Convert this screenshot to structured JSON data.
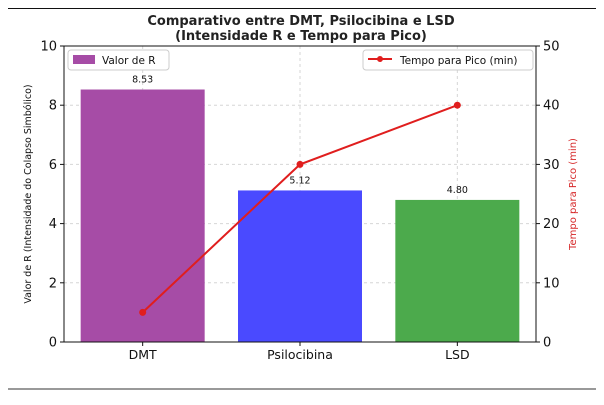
{
  "chart_data": {
    "type": "bar",
    "title_line1": "Comparativo entre DMT, Psilocibina e LSD",
    "title_line2": "(Intensidade R e Tempo para Pico)",
    "categories": [
      "DMT",
      "Psilocibina",
      "LSD"
    ],
    "bar_series": {
      "name": "Valor de R",
      "values": [
        8.53,
        5.12,
        4.8
      ],
      "value_labels": [
        "8.53",
        "5.12",
        "4.80"
      ],
      "colors": [
        "#a64ca6",
        "#4a4aff",
        "#4caa4c"
      ]
    },
    "line_series": {
      "name": "Tempo para Pico (min)",
      "values": [
        5,
        30,
        40
      ],
      "color": "#e01e1e"
    },
    "ylabel_left": "Valor de R (Intensidade do Colapso Simbólico)",
    "ylabel_right": "Tempo para Pico (min)",
    "ylim_left": [
      0,
      10
    ],
    "ylim_right": [
      0,
      50
    ],
    "yticks_left": [
      "0",
      "2",
      "4",
      "6",
      "8",
      "10"
    ],
    "yticks_right": [
      "0",
      "10",
      "20",
      "30",
      "40",
      "50"
    ],
    "grid": true,
    "legend_left_position": "top-left",
    "legend_right_position": "top-right"
  }
}
